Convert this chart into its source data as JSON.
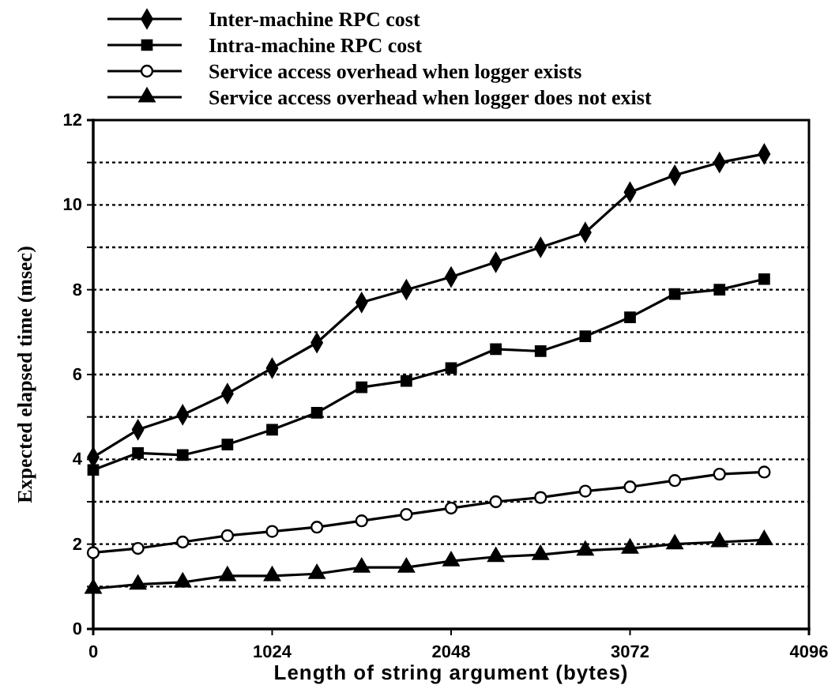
{
  "chart_data": {
    "type": "line",
    "xlabel": "Length of string argument (bytes)",
    "ylabel": "Expected elapsed time (msec)",
    "x": [
      0,
      256,
      512,
      768,
      1024,
      1280,
      1536,
      1792,
      2048,
      2304,
      2560,
      2816,
      3072,
      3328,
      3584,
      3840
    ],
    "xlim": [
      0,
      4096
    ],
    "xticks": [
      0,
      1024,
      2048,
      3072,
      4096
    ],
    "ylim": [
      0,
      12
    ],
    "yticks": [
      0,
      {
        "value": 1,
        "label": null
      },
      2,
      {
        "value": 3,
        "label": null
      },
      4,
      {
        "value": 5,
        "label": null
      },
      6,
      {
        "value": 7,
        "label": null
      },
      8,
      {
        "value": 9,
        "label": null
      },
      10,
      {
        "value": 11,
        "label": null
      },
      12
    ],
    "grid": "y",
    "legend": "top",
    "line_style": "solid",
    "series": [
      {
        "name": "Inter-machine RPC cost",
        "color": "#000000",
        "marker": "diamond",
        "values": [
          4.05,
          4.7,
          5.05,
          5.55,
          6.15,
          6.75,
          7.7,
          8.0,
          8.3,
          8.65,
          9.0,
          9.35,
          10.3,
          10.7,
          11.0,
          11.2
        ]
      },
      {
        "name": "Intra-machine RPC cost",
        "color": "#000000",
        "marker": "square",
        "values": [
          3.75,
          4.15,
          4.1,
          4.35,
          4.7,
          5.1,
          5.7,
          5.85,
          6.15,
          6.6,
          6.55,
          6.9,
          7.35,
          7.9,
          8.0,
          8.25
        ]
      },
      {
        "name": "Service access overhead when logger exists",
        "color": "#000000",
        "marker": "circle",
        "values": [
          1.8,
          1.9,
          2.05,
          2.2,
          2.3,
          2.4,
          2.55,
          2.7,
          2.85,
          3.0,
          3.1,
          3.25,
          3.35,
          3.5,
          3.65,
          3.7
        ]
      },
      {
        "name": "Service access overhead when logger does not exist",
        "color": "#000000",
        "marker": "triangle",
        "values": [
          0.95,
          1.05,
          1.1,
          1.25,
          1.25,
          1.3,
          1.45,
          1.45,
          1.6,
          1.7,
          1.75,
          1.85,
          1.9,
          2.0,
          2.05,
          2.1
        ]
      }
    ]
  }
}
